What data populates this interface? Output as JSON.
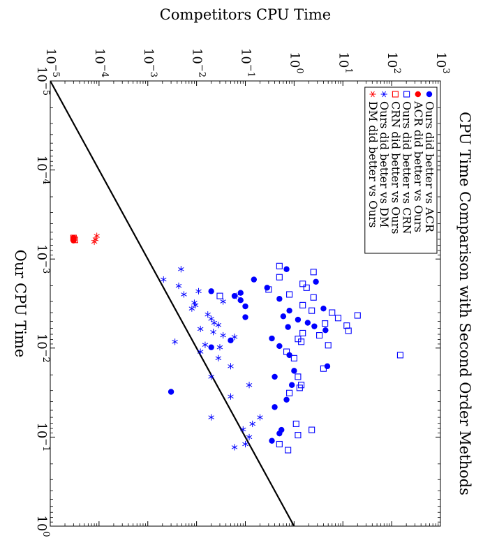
{
  "chart_data": {
    "type": "scatter",
    "title": "CPU Time Comparison with Second Order Methods",
    "xlabel": "Our CPU Time",
    "ylabel": "Competitors CPU Time",
    "x_scale": "log",
    "y_scale": "log",
    "xlim": [
      1e-05,
      1
    ],
    "ylim": [
      1e-05,
      1000
    ],
    "x_ticks": [
      "10^-5",
      "10^-4",
      "10^-3",
      "10^-2",
      "10^-1",
      "10^0"
    ],
    "y_ticks": [
      "10^-5",
      "10^-4",
      "10^-3",
      "10^-2",
      "10^-1",
      "10^0",
      "10^1",
      "10^2",
      "10^3"
    ],
    "reference_line": {
      "name": "y = x",
      "from": [
        1e-05,
        1e-05
      ],
      "to": [
        1,
        1
      ]
    },
    "legend_position": "top-right (rotated page)",
    "colors": {
      "ours_better": "#0000ff",
      "competitor_better": "#ff0000",
      "line": "#000000"
    },
    "series": [
      {
        "name": "Ours did better vs ACR",
        "marker": "filled-circle",
        "color": "#0000ff",
        "points": [
          [
            0.0013,
            0.7
          ],
          [
            0.0017,
            0.15
          ],
          [
            0.0018,
            2.8
          ],
          [
            0.0021,
            0.28
          ],
          [
            0.0024,
            0.08
          ],
          [
            0.0023,
            0.02
          ],
          [
            0.0026,
            0.06
          ],
          [
            0.0029,
            0.08
          ],
          [
            0.0028,
            0.5
          ],
          [
            0.0034,
            0.1
          ],
          [
            0.0036,
            4
          ],
          [
            0.0038,
            0.8
          ],
          [
            0.0045,
            0.1
          ],
          [
            0.0044,
            0.6
          ],
          [
            0.0048,
            1.2
          ],
          [
            0.0052,
            1.9
          ],
          [
            0.0057,
            2.6
          ],
          [
            0.0058,
            0.75
          ],
          [
            0.0063,
            4.4
          ],
          [
            0.0078,
            0.35
          ],
          [
            0.0082,
            0.05
          ],
          [
            0.0095,
            0.5
          ],
          [
            0.0098,
            0.02
          ],
          [
            0.012,
            0.8
          ],
          [
            0.016,
            4.8
          ],
          [
            0.018,
            1
          ],
          [
            0.021,
            0.4
          ],
          [
            0.026,
            0.9
          ],
          [
            0.031,
            0.003
          ],
          [
            0.038,
            0.7
          ],
          [
            0.046,
            0.4
          ],
          [
            0.091,
            0.5
          ],
          [
            0.11,
            0.35
          ],
          [
            0.083,
            0.55
          ]
        ]
      },
      {
        "name": "ACR did better vs Ours",
        "marker": "filled-circle",
        "color": "#ff0000",
        "points": [
          [
            0.00058,
            3e-05
          ],
          [
            0.00062,
            3e-05
          ]
        ]
      },
      {
        "name": "Ours did better vs CRN",
        "marker": "open-square",
        "color": "#0000ff",
        "points": [
          [
            0.0012,
            0.5
          ],
          [
            0.0014,
            2.5
          ],
          [
            0.0016,
            0.5
          ],
          [
            0.0019,
            1.5
          ],
          [
            0.0021,
            1.8
          ],
          [
            0.0022,
            0.3
          ],
          [
            0.0025,
            0.8
          ],
          [
            0.0027,
            2.5
          ],
          [
            0.0033,
            1.5
          ],
          [
            0.0038,
            2.3
          ],
          [
            0.004,
            6
          ],
          [
            0.0043,
            20
          ],
          [
            0.0046,
            8
          ],
          [
            0.0053,
            4.3
          ],
          [
            0.0056,
            12
          ],
          [
            0.0064,
            13
          ],
          [
            0.0068,
            1.5
          ],
          [
            0.0072,
            3.3
          ],
          [
            0.0079,
            1.2
          ],
          [
            0.0085,
            1.4
          ],
          [
            0.0093,
            5
          ],
          [
            0.011,
            0.7
          ],
          [
            0.013,
            1
          ],
          [
            0.017,
            4
          ],
          [
            0.021,
            1.2
          ],
          [
            0.026,
            1.4
          ],
          [
            0.028,
            1.3
          ],
          [
            0.032,
            0.8
          ],
          [
            0.071,
            1.1
          ],
          [
            0.083,
            2.3
          ],
          [
            0.095,
            1.2
          ],
          [
            0.14,
            0.75
          ],
          [
            0.12,
            0.5
          ],
          [
            0.012,
            150
          ],
          [
            0.0026,
            0.03
          ]
        ]
      },
      {
        "name": "CRN did better vs Ours",
        "marker": "open-square",
        "color": "#ff0000",
        "points": [
          [
            0.00058,
            3e-05
          ],
          [
            0.00061,
            3.2e-05
          ]
        ]
      },
      {
        "name": "Ours did better vs DM",
        "marker": "star",
        "color": "#0000ff",
        "points": [
          [
            0.0013,
            0.0048
          ],
          [
            0.0017,
            0.0021
          ],
          [
            0.002,
            0.0043
          ],
          [
            0.0023,
            0.011
          ],
          [
            0.0025,
            0.0055
          ],
          [
            0.0026,
            0.065
          ],
          [
            0.003,
            0.035
          ],
          [
            0.0031,
            0.009
          ],
          [
            0.0033,
            0.0095
          ],
          [
            0.0036,
            0.008
          ],
          [
            0.0042,
            0.017
          ],
          [
            0.0047,
            0.02
          ],
          [
            0.0052,
            0.023
          ],
          [
            0.0055,
            0.028
          ],
          [
            0.0061,
            0.012
          ],
          [
            0.0066,
            0.022
          ],
          [
            0.0072,
            0.035
          ],
          [
            0.0075,
            0.06
          ],
          [
            0.0085,
            0.0036
          ],
          [
            0.0092,
            0.015
          ],
          [
            0.0098,
            0.03
          ],
          [
            0.011,
            0.012
          ],
          [
            0.013,
            0.028
          ],
          [
            0.016,
            0.05
          ],
          [
            0.021,
            0.02
          ],
          [
            0.026,
            0.12
          ],
          [
            0.035,
            0.05
          ],
          [
            0.06,
            0.2
          ],
          [
            0.071,
            0.14
          ],
          [
            0.082,
            0.09
          ],
          [
            0.1,
            0.12
          ],
          [
            0.12,
            0.1
          ],
          [
            0.13,
            0.06
          ],
          [
            0.06,
            0.02
          ]
        ]
      },
      {
        "name": "DM did better vs Ours",
        "marker": "star",
        "color": "#ff0000",
        "points": [
          [
            0.00055,
            9e-05
          ],
          [
            0.0006,
            8.5e-05
          ],
          [
            0.00064,
            8e-05
          ]
        ]
      }
    ]
  }
}
